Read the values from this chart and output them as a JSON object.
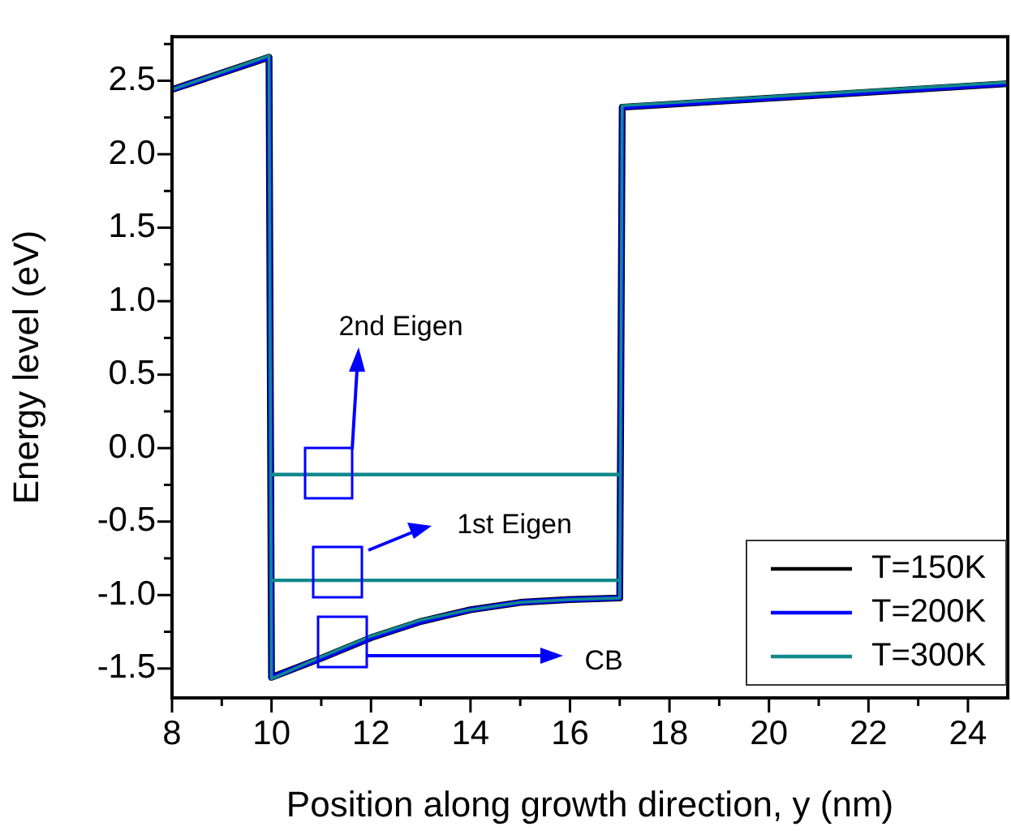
{
  "chart_data": {
    "type": "line",
    "xlabel": "Position along growth direction, y (nm)",
    "ylabel": "Energy level (eV)",
    "xlim": [
      8,
      24.8
    ],
    "ylim": [
      -1.7,
      2.8
    ],
    "xticks": [
      8,
      {
        "value": 9,
        "label": null
      },
      10,
      {
        "value": 11,
        "label": null
      },
      12,
      {
        "value": 13,
        "label": null
      },
      14,
      {
        "value": 15,
        "label": null
      },
      16,
      {
        "value": 17,
        "label": null
      },
      18,
      {
        "value": 19,
        "label": null
      },
      20,
      {
        "value": 21,
        "label": null
      },
      22,
      {
        "value": 23,
        "label": null
      },
      24
    ],
    "yticks": [
      -1.5,
      {
        "value": -1.25,
        "label": null
      },
      {
        "value": -1,
        "label": "-1.0"
      },
      {
        "value": -0.75,
        "label": null
      },
      -0.5,
      {
        "value": -0.25,
        "label": null
      },
      {
        "value": 0,
        "label": "0.0"
      },
      {
        "value": 0.25,
        "label": null
      },
      0.5,
      {
        "value": 0.75,
        "label": null
      },
      {
        "value": 1,
        "label": "1.0"
      },
      {
        "value": 1.25,
        "label": null
      },
      1.5,
      {
        "value": 1.75,
        "label": null
      },
      {
        "value": 2,
        "label": "2.0"
      },
      {
        "value": 2.25,
        "label": null
      },
      2.5,
      {
        "value": 2.75,
        "label": null
      }
    ],
    "grid": false,
    "legend": "bottom right",
    "marker": "none",
    "line_style": "solid",
    "annotations": [
      "2nd Eigen",
      "1st Eigen",
      "CB"
    ],
    "series": [
      {
        "name": "T=150K",
        "color": "#000000",
        "x": [
          8,
          9.95,
          10,
          11,
          12,
          13,
          14,
          15,
          16,
          17,
          17.05,
          24.8
        ],
        "values": [
          2.44,
          2.66,
          -1.56,
          -1.43,
          -1.29,
          -1.18,
          -1.1,
          -1.05,
          -1.03,
          -1.02,
          2.32,
          2.48
        ]
      },
      {
        "name": "T=200K",
        "color": "#0000ff",
        "x": [
          8,
          9.95,
          10,
          11,
          12,
          13,
          14,
          15,
          16,
          17,
          17.05,
          24.8
        ],
        "values": [
          2.44,
          2.66,
          -1.56,
          -1.43,
          -1.29,
          -1.18,
          -1.1,
          -1.05,
          -1.03,
          -1.02,
          2.32,
          2.48
        ]
      },
      {
        "name": "T=300K",
        "color": "#10898b",
        "x": [
          8,
          9.95,
          10,
          11,
          12,
          13,
          14,
          15,
          16,
          17,
          17.05,
          24.8
        ],
        "values": [
          2.44,
          2.67,
          -1.57,
          -1.42,
          -1.28,
          -1.17,
          -1.1,
          -1.05,
          -1.03,
          -1.02,
          2.33,
          2.49
        ]
      },
      {
        "color": "#10898b",
        "x": [
          10,
          17
        ],
        "values": [
          -0.18,
          -0.18
        ]
      },
      {
        "color": "#10898b",
        "x": [
          10,
          17
        ],
        "values": [
          -0.9,
          -0.9
        ]
      }
    ]
  }
}
